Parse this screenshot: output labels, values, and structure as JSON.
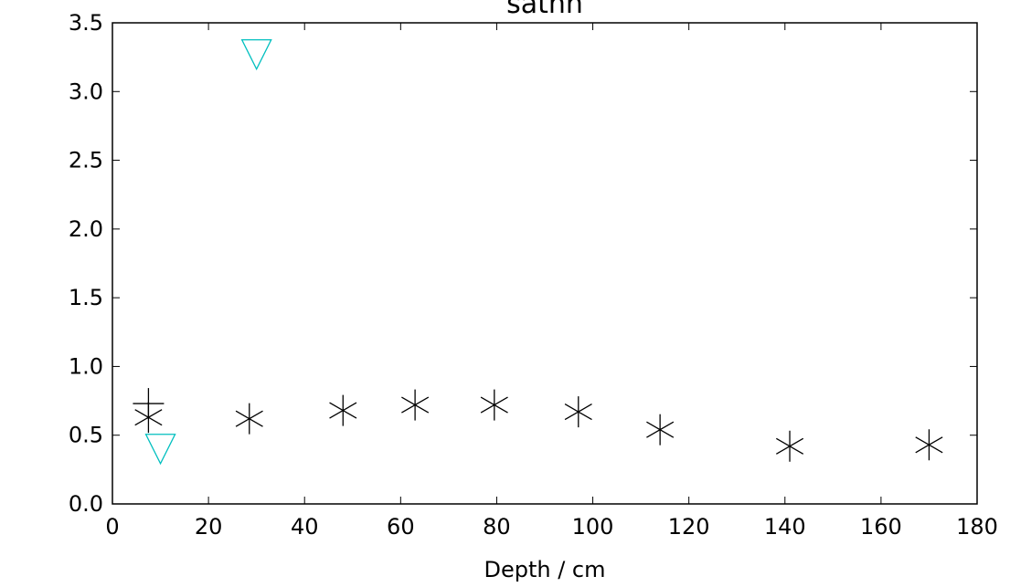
{
  "chart_data": {
    "type": "scatter",
    "title": "sathn",
    "xlabel": "Depth / cm",
    "ylabel": "",
    "xlim": [
      0,
      180
    ],
    "ylim": [
      0.0,
      3.5
    ],
    "xticks": [
      0,
      20,
      40,
      60,
      80,
      100,
      120,
      140,
      160,
      180
    ],
    "xtick_labels": [
      "0",
      "20",
      "40",
      "60",
      "80",
      "100",
      "120",
      "140",
      "160",
      "180"
    ],
    "yticks": [
      0.0,
      0.5,
      1.0,
      1.5,
      2.0,
      2.5,
      3.0,
      3.5
    ],
    "ytick_labels": [
      "0.0",
      "0.5",
      "1.0",
      "1.5",
      "2.0",
      "2.5",
      "3.0",
      "3.5"
    ],
    "grid": false,
    "series": [
      {
        "marker": "asterisk",
        "color": "#000000",
        "x": [
          7.5,
          28.5,
          48,
          63,
          79.5,
          97,
          114,
          141,
          170
        ],
        "y": [
          0.63,
          0.62,
          0.68,
          0.72,
          0.72,
          0.67,
          0.54,
          0.42,
          0.43
        ]
      },
      {
        "marker": "plus",
        "color": "#000000",
        "x": [
          7.5
        ],
        "y": [
          0.73
        ]
      },
      {
        "marker": "triangle-down",
        "color": "#00bfbf",
        "x": [
          10,
          30
        ],
        "y": [
          0.4,
          3.27
        ]
      }
    ]
  }
}
